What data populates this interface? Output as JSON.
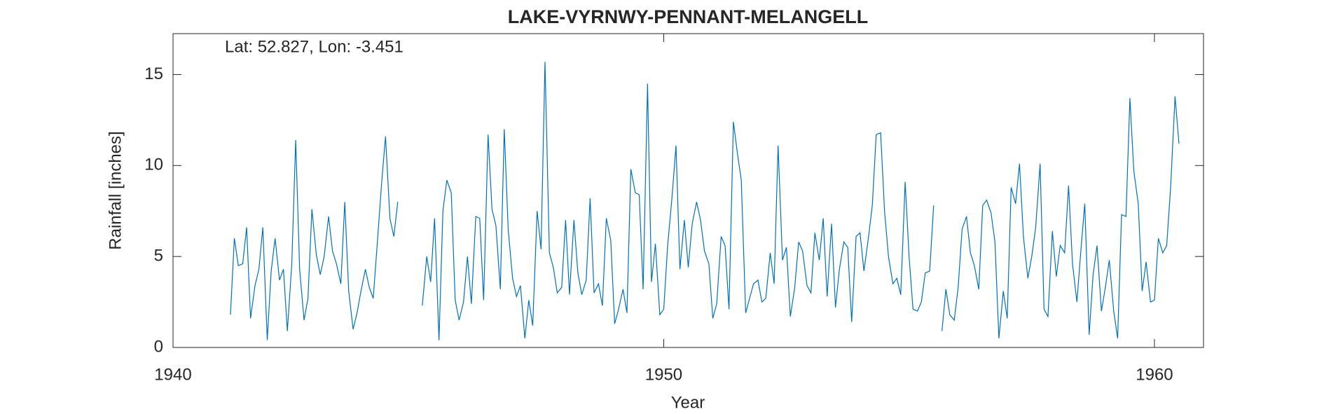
{
  "chart_data": {
    "type": "line",
    "title": "LAKE-VYRNWY-PENNANT-MELANGELL",
    "annotation": "Lat: 52.827, Lon: -3.451",
    "xlabel": "Year",
    "ylabel": "Rainfall [inches]",
    "color": "#0072bd",
    "xlim": [
      1940,
      1961
    ],
    "xticks": [
      1940,
      1950,
      1960
    ],
    "ylim": [
      0,
      17.25
    ],
    "yticks": [
      0,
      5,
      10,
      15
    ],
    "x": [
      1941.17,
      1941.25,
      1941.33,
      1941.42,
      1941.5,
      1941.58,
      1941.67,
      1941.75,
      1941.83,
      1941.92,
      1942.0,
      1942.08,
      1942.17,
      1942.25,
      1942.33,
      1942.42,
      1942.5,
      1942.58,
      1942.67,
      1942.75,
      1942.83,
      1942.92,
      1943.0,
      1943.08,
      1943.17,
      1943.25,
      1943.33,
      1943.42,
      1943.5,
      1943.58,
      1943.67,
      1943.75,
      1943.83,
      1943.92,
      1944.0,
      1944.08,
      1944.17,
      1944.25,
      1944.33,
      1944.42,
      1944.5,
      1944.58,
      1944.83,
      1945.08,
      1945.17,
      1945.25,
      1945.33,
      1945.42,
      1945.5,
      1945.58,
      1945.67,
      1945.75,
      1945.83,
      1945.92,
      1946.0,
      1946.08,
      1946.17,
      1946.25,
      1946.33,
      1946.42,
      1946.5,
      1946.58,
      1946.67,
      1946.75,
      1946.83,
      1946.92,
      1947.0,
      1947.08,
      1947.17,
      1947.25,
      1947.33,
      1947.42,
      1947.5,
      1947.58,
      1947.67,
      1947.75,
      1947.83,
      1947.92,
      1948.0,
      1948.08,
      1948.17,
      1948.25,
      1948.33,
      1948.42,
      1948.5,
      1948.58,
      1948.67,
      1948.75,
      1948.83,
      1948.92,
      1949.0,
      1949.08,
      1949.17,
      1949.25,
      1949.33,
      1949.42,
      1949.5,
      1949.58,
      1949.67,
      1949.75,
      1949.83,
      1949.92,
      1950.0,
      1950.08,
      1950.17,
      1950.25,
      1950.33,
      1950.42,
      1950.5,
      1950.58,
      1950.67,
      1950.75,
      1950.83,
      1950.92,
      1951.0,
      1951.08,
      1951.17,
      1951.25,
      1951.33,
      1951.42,
      1951.5,
      1951.58,
      1951.67,
      1951.75,
      1951.83,
      1951.92,
      1952.0,
      1952.08,
      1952.17,
      1952.25,
      1952.33,
      1952.42,
      1952.5,
      1952.58,
      1952.67,
      1952.75,
      1952.83,
      1952.92,
      1953.0,
      1953.08,
      1953.17,
      1953.25,
      1953.33,
      1953.42,
      1953.5,
      1953.58,
      1953.67,
      1953.75,
      1953.83,
      1953.92,
      1954.0,
      1954.08,
      1954.17,
      1954.25,
      1954.33,
      1954.42,
      1954.5,
      1954.58,
      1954.67,
      1954.75,
      1954.83,
      1954.92,
      1955.0,
      1955.08,
      1955.17,
      1955.25,
      1955.33,
      1955.42,
      1955.5,
      1955.58,
      1955.67,
      1955.75,
      1955.83,
      1955.92,
      1956.0,
      1956.08,
      1956.17,
      1956.25,
      1956.33,
      1956.42,
      1956.5,
      1956.58,
      1956.67,
      1956.75,
      1956.83,
      1956.92,
      1957.0,
      1957.08,
      1957.17,
      1957.25,
      1957.33,
      1957.42,
      1957.5,
      1957.58,
      1957.67,
      1957.75,
      1957.83,
      1957.92,
      1958.0,
      1958.08,
      1958.17,
      1958.25,
      1958.33,
      1958.42,
      1958.5,
      1958.58,
      1958.67,
      1958.75,
      1958.83,
      1958.92,
      1959.0,
      1959.08,
      1959.17,
      1959.25,
      1959.33,
      1959.42,
      1959.5,
      1959.58,
      1959.67,
      1959.75,
      1959.83,
      1959.92,
      1960.0,
      1960.08,
      1960.17,
      1960.25,
      1960.33,
      1960.42,
      1960.5
    ],
    "values": [
      1.8,
      6.0,
      4.5,
      4.6,
      6.6,
      1.6,
      3.4,
      4.3,
      6.6,
      0.4,
      4.2,
      6.0,
      3.7,
      4.3,
      0.9,
      4.6,
      11.4,
      4.3,
      1.5,
      2.7,
      7.6,
      5.1,
      4.0,
      5.0,
      7.2,
      5.3,
      4.6,
      3.5,
      8.0,
      3.1,
      1.0,
      1.9,
      3.1,
      4.3,
      3.3,
      2.7,
      6.0,
      9.0,
      11.6,
      7.1,
      6.1,
      8.0,
      null,
      2.3,
      5.0,
      3.6,
      7.1,
      0.4,
      7.5,
      9.2,
      8.5,
      2.6,
      1.5,
      2.5,
      5.0,
      2.4,
      7.2,
      7.1,
      2.6,
      11.7,
      7.6,
      6.7,
      3.2,
      12.0,
      6.5,
      3.8,
      2.8,
      3.4,
      0.5,
      2.6,
      1.2,
      7.5,
      5.4,
      15.7,
      5.2,
      4.4,
      3.0,
      3.3,
      7.0,
      2.9,
      7.0,
      4.1,
      2.9,
      3.7,
      8.2,
      3.0,
      3.5,
      2.3,
      7.1,
      5.9,
      1.3,
      2.1,
      3.2,
      1.9,
      9.8,
      8.5,
      8.4,
      3.2,
      14.5,
      3.6,
      5.7,
      1.8,
      2.1,
      5.6,
      8.3,
      11.1,
      4.3,
      7.0,
      4.4,
      6.8,
      8.0,
      7.0,
      5.3,
      4.6,
      1.6,
      2.4,
      6.1,
      5.6,
      2.1,
      12.4,
      10.7,
      9.2,
      1.9,
      2.7,
      3.5,
      3.7,
      2.5,
      2.7,
      5.2,
      3.5,
      11.1,
      4.8,
      5.5,
      1.7,
      3.3,
      5.8,
      5.3,
      3.4,
      3.0,
      6.3,
      4.8,
      7.1,
      2.8,
      6.8,
      2.2,
      4.3,
      5.8,
      5.5,
      1.4,
      6.1,
      6.3,
      4.2,
      6.0,
      7.8,
      11.7,
      11.8,
      7.5,
      5.0,
      3.5,
      3.8,
      2.9,
      9.1,
      5.0,
      2.1,
      2.0,
      2.5,
      4.1,
      4.2,
      7.8,
      null,
      0.9,
      3.2,
      1.8,
      1.5,
      3.3,
      6.5,
      7.2,
      5.2,
      4.5,
      3.2,
      7.8,
      8.1,
      7.4,
      5.8,
      0.5,
      3.1,
      1.6,
      8.8,
      7.9,
      10.1,
      6.1,
      3.8,
      5.0,
      6.6,
      10.1,
      2.1,
      1.7,
      6.4,
      3.9,
      5.6,
      5.2,
      8.9,
      4.6,
      2.5,
      5.3,
      7.9,
      0.7,
      4.0,
      5.6,
      2.0,
      3.3,
      4.8,
      2.0,
      0.5,
      7.3,
      7.2,
      13.7,
      9.7,
      7.9,
      3.1,
      4.7,
      2.5,
      2.6,
      6.0,
      5.2,
      5.6,
      8.8,
      13.8,
      11.2
    ]
  }
}
